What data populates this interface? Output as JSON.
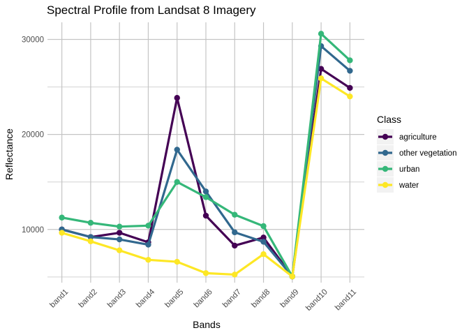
{
  "chart_data": {
    "type": "line",
    "title": "Spectral Profile from Landsat 8 Imagery",
    "xlabel": "Bands",
    "ylabel": "Reflectance",
    "categories": [
      "band1",
      "band2",
      "band3",
      "band4",
      "band5",
      "band6",
      "band7",
      "band8",
      "band9",
      "band10",
      "band11"
    ],
    "ylim": [
      4400,
      31800
    ],
    "yticks": [
      10000,
      20000,
      30000
    ],
    "ytick_labels": [
      "10000",
      "20000",
      "30000"
    ],
    "grid": true,
    "legend": {
      "title": "Class",
      "position": "right"
    },
    "series": [
      {
        "name": "agriculture",
        "color": "#440154",
        "values": [
          10000,
          9200,
          9650,
          8650,
          23850,
          11450,
          8300,
          9150,
          5050,
          26900,
          24900
        ]
      },
      {
        "name": "other vegetation",
        "color": "#31688e",
        "values": [
          10000,
          9200,
          8950,
          8400,
          18400,
          14000,
          9700,
          8700,
          5050,
          29300,
          26700
        ]
      },
      {
        "name": "urban",
        "color": "#35b779",
        "values": [
          11250,
          10700,
          10300,
          10400,
          15000,
          13400,
          11550,
          10350,
          5050,
          30600,
          27800
        ]
      },
      {
        "name": "water",
        "color": "#fde725",
        "values": [
          9650,
          8750,
          7800,
          6800,
          6600,
          5400,
          5250,
          7400,
          5050,
          25900,
          24000
        ]
      }
    ]
  }
}
